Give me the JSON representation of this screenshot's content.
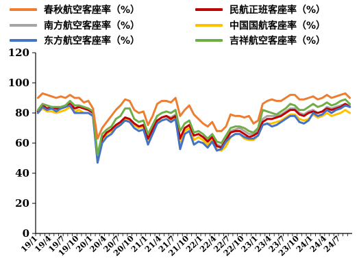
{
  "chart_data": {
    "type": "line",
    "title": "",
    "xlabel": "",
    "ylabel": "",
    "ylim": [
      0,
      120
    ],
    "yticks": [
      "0",
      "20",
      "40",
      "60",
      "80",
      "100",
      "120"
    ],
    "grid": false,
    "legend_position": "top",
    "x_tick_labels": [
      "19/1",
      "19/4",
      "19/7",
      "19/10",
      "20/1",
      "20/4",
      "20/7",
      "20/10",
      "21/1",
      "21/4",
      "21/7",
      "21/10",
      "22/1",
      "22/4",
      "22/7",
      "22/10",
      "23/1",
      "23/4",
      "23/7",
      "23/10",
      "24/1",
      "24/4",
      "24/7"
    ],
    "x": [
      "19/1",
      "19/2",
      "19/3",
      "19/4",
      "19/5",
      "19/6",
      "19/7",
      "19/8",
      "19/9",
      "19/10",
      "19/11",
      "19/12",
      "20/1",
      "20/2",
      "20/3",
      "20/4",
      "20/5",
      "20/6",
      "20/7",
      "20/8",
      "20/9",
      "20/10",
      "20/11",
      "20/12",
      "21/1",
      "21/2",
      "21/3",
      "21/4",
      "21/5",
      "21/6",
      "21/7",
      "21/8",
      "21/9",
      "21/10",
      "21/11",
      "21/12",
      "22/1",
      "22/2",
      "22/3",
      "22/4",
      "22/5",
      "22/6",
      "22/7",
      "22/8",
      "22/9",
      "22/10",
      "22/11",
      "22/12",
      "23/1",
      "23/2",
      "23/3",
      "23/4",
      "23/5",
      "23/6",
      "23/7",
      "23/8",
      "23/9",
      "23/10",
      "23/11",
      "23/12",
      "24/1",
      "24/2",
      "24/3",
      "24/4",
      "24/5",
      "24/6",
      "24/7",
      "24/8",
      "24/9"
    ],
    "series": [
      {
        "name": "春秋航空客座率（%）",
        "color": "#ED7D31",
        "values": [
          90,
          93,
          92,
          91,
          90,
          91,
          90,
          92,
          90,
          90,
          87,
          88,
          83,
          63,
          70,
          74,
          78,
          82,
          85,
          89,
          88,
          82,
          80,
          81,
          72,
          78,
          86,
          88,
          88,
          87,
          90,
          78,
          82,
          85,
          79,
          76,
          73,
          71,
          74,
          68,
          68,
          71,
          79,
          78,
          78,
          77,
          78,
          73,
          75,
          86,
          88,
          89,
          88,
          88,
          90,
          92,
          92,
          89,
          89,
          90,
          91,
          89,
          90,
          92,
          90,
          91,
          92,
          93,
          90
        ]
      },
      {
        "name": "民航正班客座率（%）",
        "color": "#C00000",
        "values": [
          81,
          85,
          83,
          84,
          83,
          83,
          84,
          86,
          83,
          84,
          83,
          82,
          80,
          50,
          63,
          67,
          69,
          72,
          74,
          77,
          76,
          73,
          71,
          72,
          63,
          69,
          75,
          77,
          78,
          76,
          78,
          63,
          70,
          72,
          65,
          66,
          64,
          61,
          64,
          58,
          57,
          62,
          67,
          68,
          68,
          66,
          64,
          65,
          67,
          74,
          76,
          76,
          77,
          78,
          80,
          82,
          82,
          79,
          78,
          80,
          81,
          80,
          81,
          83,
          82,
          83,
          84,
          86,
          84
        ]
      },
      {
        "name": "南方航空客座率（%）",
        "color": "#A5A5A5",
        "values": [
          81,
          84,
          83,
          83,
          82,
          83,
          84,
          86,
          83,
          84,
          83,
          82,
          80,
          49,
          63,
          67,
          69,
          72,
          74,
          77,
          76,
          73,
          71,
          72,
          63,
          69,
          75,
          77,
          78,
          77,
          79,
          63,
          70,
          72,
          65,
          66,
          64,
          62,
          64,
          59,
          58,
          63,
          68,
          69,
          70,
          68,
          66,
          66,
          68,
          76,
          78,
          78,
          78,
          79,
          81,
          83,
          83,
          80,
          79,
          81,
          82,
          80,
          81,
          84,
          83,
          84,
          85,
          86,
          85
        ]
      },
      {
        "name": "中国国航客座率（%）",
        "color": "#FFC000",
        "values": [
          80,
          83,
          81,
          81,
          80,
          81,
          82,
          84,
          81,
          82,
          80,
          80,
          78,
          48,
          61,
          66,
          68,
          71,
          73,
          76,
          75,
          72,
          70,
          71,
          62,
          67,
          74,
          75,
          76,
          75,
          78,
          60,
          68,
          70,
          62,
          64,
          62,
          59,
          62,
          56,
          55,
          58,
          64,
          66,
          66,
          63,
          62,
          62,
          65,
          72,
          73,
          73,
          74,
          75,
          77,
          79,
          79,
          76,
          75,
          76,
          79,
          77,
          78,
          80,
          78,
          79,
          80,
          82,
          80
        ]
      },
      {
        "name": "东方航空客座率（%）",
        "color": "#4472C4",
        "values": [
          80,
          84,
          82,
          83,
          81,
          83,
          84,
          85,
          80,
          80,
          80,
          80,
          78,
          47,
          60,
          64,
          66,
          70,
          72,
          75,
          74,
          70,
          68,
          69,
          59,
          66,
          73,
          75,
          76,
          74,
          76,
          56,
          66,
          68,
          59,
          61,
          60,
          57,
          61,
          55,
          56,
          61,
          64,
          66,
          66,
          64,
          63,
          63,
          65,
          72,
          73,
          71,
          72,
          74,
          76,
          78,
          78,
          74,
          73,
          75,
          80,
          78,
          79,
          82,
          80,
          82,
          83,
          85,
          84
        ]
      },
      {
        "name": "吉祥航空客座率（%）",
        "color": "#70AD47",
        "values": [
          82,
          86,
          85,
          84,
          84,
          84,
          85,
          88,
          85,
          85,
          84,
          83,
          81,
          52,
          66,
          69,
          71,
          76,
          78,
          83,
          83,
          76,
          74,
          75,
          66,
          72,
          78,
          80,
          81,
          80,
          82,
          68,
          73,
          75,
          67,
          68,
          66,
          63,
          66,
          61,
          60,
          65,
          70,
          71,
          71,
          70,
          68,
          67,
          70,
          82,
          81,
          80,
          79,
          81,
          83,
          86,
          85,
          82,
          82,
          84,
          86,
          84,
          85,
          87,
          85,
          86,
          88,
          89,
          86
        ]
      }
    ]
  }
}
